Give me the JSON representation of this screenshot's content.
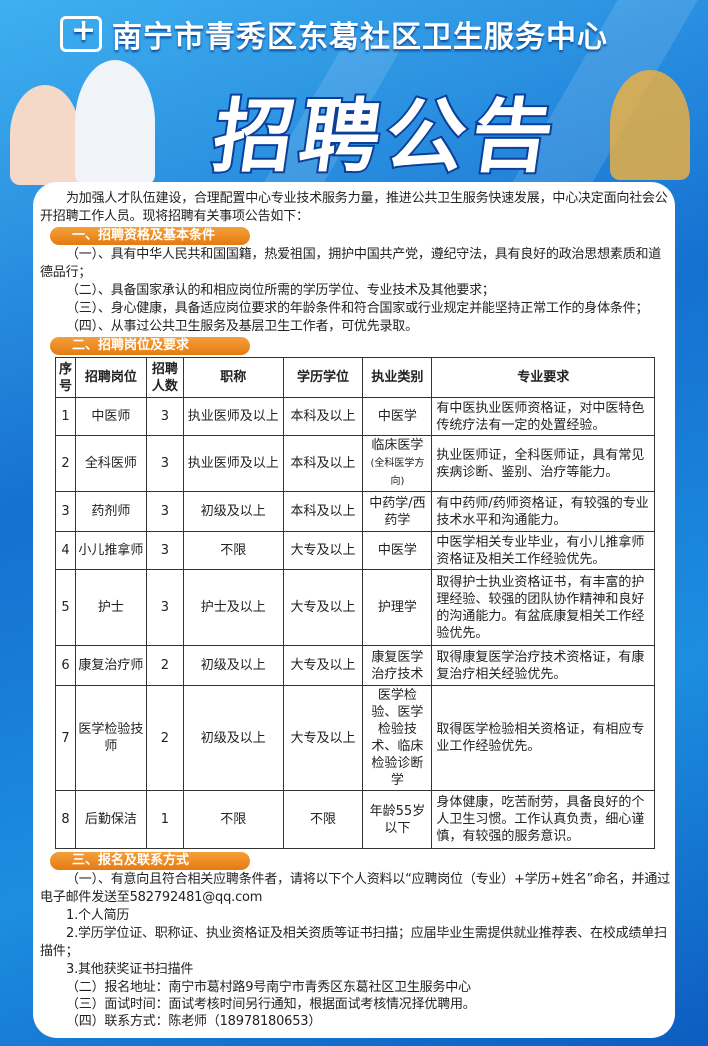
{
  "header": {
    "org_name": "南宁市青秀区东葛社区卫生服务中心",
    "title": "招聘公告"
  },
  "intro": "为加强人才队伍建设，合理配置中心专业技术服务力量，推进公共卫生服务快速发展，中心决定面向社会公开招聘工作人员。现将招聘有关事项公告如下：",
  "section1": {
    "heading": "一、招聘资格及基本条件",
    "items": [
      "（一）、具有中华人民共和国国籍，热爱祖国，拥护中国共产党，遵纪守法，具有良好的政治思想素质和道德品行；",
      "（二）、具备国家承认的和相应岗位所需的学历学位、专业技术及其他要求；",
      "（三）、身心健康，具备适应岗位要求的年龄条件和符合国家或行业规定并能坚持正常工作的身体条件；",
      "（四）、从事过公共卫生服务及基层卫生工作者，可优先录取。"
    ]
  },
  "section2": {
    "heading": "二、招聘岗位及要求",
    "columns": [
      "序号",
      "招聘岗位",
      "招聘人数",
      "职称",
      "学历学位",
      "执业类别",
      "专业要求"
    ],
    "rows": [
      [
        "1",
        "中医师",
        "3",
        "执业医师及以上",
        "本科及以上",
        "中医学",
        "",
        "有中医执业医师资格证，对中医特色传统疗法有一定的处置经验。"
      ],
      [
        "2",
        "全科医师",
        "3",
        "执业医师及以上",
        "本科及以上",
        "临床医学",
        "(全科医学方向)",
        "执业医师证，全科医师证，具有常见疾病诊断、鉴别、治疗等能力。"
      ],
      [
        "3",
        "药剂师",
        "3",
        "初级及以上",
        "本科及以上",
        "中药学/西药学",
        "",
        "有中药师/药师资格证，有较强的专业技术水平和沟通能力。"
      ],
      [
        "4",
        "小儿推拿师",
        "3",
        "不限",
        "大专及以上",
        "中医学",
        "",
        "中医学相关专业毕业，有小儿推拿师资格证及相关工作经验优先。"
      ],
      [
        "5",
        "护士",
        "3",
        "护士及以上",
        "大专及以上",
        "护理学",
        "",
        "取得护士执业资格证书，有丰富的护理经验、较强的团队协作精神和良好的沟通能力。有盆底康复相关工作经验优先。"
      ],
      [
        "6",
        "康复治疗师",
        "2",
        "初级及以上",
        "大专及以上",
        "康复医学治疗技术",
        "",
        "取得康复医学治疗技术资格证，有康复治疗相关经验优先。"
      ],
      [
        "7",
        "医学检验技师",
        "2",
        "初级及以上",
        "大专及以上",
        "医学检验、医学检验技术、临床检验诊断学",
        "",
        "取得医学检验相关资格证，有相应专业工作经验优先。"
      ],
      [
        "8",
        "后勤保洁",
        "1",
        "不限",
        "不限",
        "年龄55岁以下",
        "",
        "身体健康，吃苦耐劳，具备良好的个人卫生习惯。工作认真负责，细心谨慎，有较强的服务意识。"
      ]
    ]
  },
  "section3": {
    "heading": "三、报名及联系方式",
    "p1": "（一）、有意向且符合相关应聘条件者，请将以下个人资料以“应聘岗位（专业）+学历+姓名”命名，并通过电子邮件发送至582792481@qq.com",
    "docs": [
      "1.个人简历",
      "2.学历学位证、职称证、执业资格证及相关资质等证书扫描；应届毕业生需提供就业推荐表、在校成绩单扫描件；",
      "3.其他获奖证书扫描件"
    ],
    "address": "（二）报名地址：南宁市葛村路9号南宁市青秀区东葛社区卫生服务中心",
    "interview": "（三）面试时间：面试考核时间另行通知，根据面试考核情况择优聘用。",
    "contact": "（四）联系方式：陈老师（18978180653）"
  },
  "colors": {
    "accent": "#e57a12",
    "background": "#1a7fd6"
  }
}
